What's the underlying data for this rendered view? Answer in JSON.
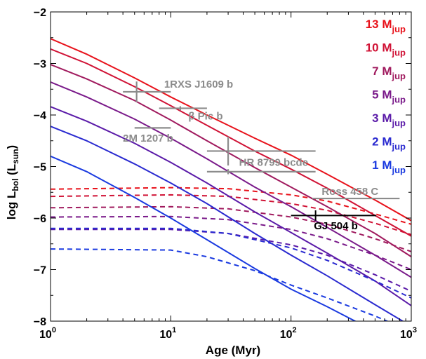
{
  "chart_data": {
    "type": "line",
    "xlabel": "Age (Myr)",
    "ylabel_main": "log L",
    "ylabel_sub1": "bol",
    "ylabel_open": " (L",
    "ylabel_sub2": "sun",
    "ylabel_close": ")",
    "xscale": "log",
    "xlim": [
      1,
      1000
    ],
    "ylim": [
      -8,
      -2
    ],
    "x_ticks": [
      {
        "value": 1,
        "base": "10",
        "exp": "0"
      },
      {
        "value": 10,
        "base": "10",
        "exp": "1"
      },
      {
        "value": 100,
        "base": "10",
        "exp": "2"
      },
      {
        "value": 1000,
        "base": "10",
        "exp": "3"
      }
    ],
    "y_ticks": [
      {
        "value": -2,
        "label": "−2"
      },
      {
        "value": -3,
        "label": "−3"
      },
      {
        "value": -4,
        "label": "−4"
      },
      {
        "value": -5,
        "label": "−5"
      },
      {
        "value": -6,
        "label": "−6"
      },
      {
        "value": -7,
        "label": "−7"
      },
      {
        "value": -8,
        "label": "−8"
      }
    ],
    "legend_position": "top-right",
    "series": [
      {
        "name": "13 M",
        "sub": "jup",
        "color": "#e8121b",
        "hot": [
          [
            1,
            -2.52
          ],
          [
            2,
            -2.82
          ],
          [
            5,
            -3.28
          ],
          [
            10,
            -3.65
          ],
          [
            20,
            -4.0
          ],
          [
            50,
            -4.45
          ],
          [
            100,
            -4.78
          ],
          [
            200,
            -5.15
          ],
          [
            500,
            -5.65
          ],
          [
            1000,
            -6.05
          ]
        ],
        "cold": [
          [
            1,
            -5.44
          ],
          [
            10,
            -5.41
          ],
          [
            30,
            -5.43
          ],
          [
            100,
            -5.55
          ],
          [
            200,
            -5.67
          ],
          [
            500,
            -5.92
          ],
          [
            1000,
            -6.12
          ]
        ]
      },
      {
        "name": "10 M",
        "sub": "jup",
        "color": "#d01235",
        "hot": [
          [
            1,
            -2.72
          ],
          [
            2,
            -3.0
          ],
          [
            5,
            -3.45
          ],
          [
            10,
            -3.82
          ],
          [
            20,
            -4.2
          ],
          [
            50,
            -4.7
          ],
          [
            100,
            -5.05
          ],
          [
            200,
            -5.42
          ],
          [
            500,
            -5.95
          ],
          [
            1000,
            -6.35
          ]
        ],
        "cold": [
          [
            1,
            -5.58
          ],
          [
            10,
            -5.55
          ],
          [
            30,
            -5.58
          ],
          [
            100,
            -5.72
          ],
          [
            200,
            -5.85
          ],
          [
            500,
            -6.1
          ],
          [
            1000,
            -6.32
          ]
        ]
      },
      {
        "name": "7 M",
        "sub": "jup",
        "color": "#a01a5e",
        "hot": [
          [
            1,
            -3.02
          ],
          [
            2,
            -3.3
          ],
          [
            5,
            -3.72
          ],
          [
            10,
            -4.1
          ],
          [
            20,
            -4.5
          ],
          [
            50,
            -5.02
          ],
          [
            100,
            -5.4
          ],
          [
            200,
            -5.78
          ],
          [
            500,
            -6.3
          ],
          [
            1000,
            -6.75
          ]
        ],
        "cold": [
          [
            1,
            -5.8
          ],
          [
            10,
            -5.78
          ],
          [
            30,
            -5.82
          ],
          [
            100,
            -5.98
          ],
          [
            200,
            -6.12
          ],
          [
            500,
            -6.4
          ],
          [
            1000,
            -6.65
          ]
        ]
      },
      {
        "name": "5 M",
        "sub": "jup",
        "color": "#7a1a8a",
        "hot": [
          [
            1,
            -3.36
          ],
          [
            2,
            -3.65
          ],
          [
            5,
            -4.08
          ],
          [
            10,
            -4.45
          ],
          [
            20,
            -4.85
          ],
          [
            50,
            -5.4
          ],
          [
            100,
            -5.78
          ],
          [
            200,
            -6.18
          ],
          [
            500,
            -6.72
          ],
          [
            1000,
            -7.15
          ]
        ],
        "cold": [
          [
            1,
            -5.98
          ],
          [
            10,
            -5.97
          ],
          [
            30,
            -6.03
          ],
          [
            100,
            -6.22
          ],
          [
            200,
            -6.4
          ],
          [
            500,
            -6.72
          ],
          [
            1000,
            -7.0
          ]
        ]
      },
      {
        "name": "3 M",
        "sub": "jup",
        "color": "#5a1aa8",
        "hot": [
          [
            1,
            -3.84
          ],
          [
            2,
            -4.12
          ],
          [
            5,
            -4.55
          ],
          [
            10,
            -4.92
          ],
          [
            20,
            -5.32
          ],
          [
            50,
            -5.88
          ],
          [
            100,
            -6.28
          ],
          [
            200,
            -6.68
          ],
          [
            500,
            -7.22
          ],
          [
            1000,
            -7.7
          ]
        ],
        "cold": [
          [
            1,
            -6.22
          ],
          [
            10,
            -6.22
          ],
          [
            30,
            -6.3
          ],
          [
            100,
            -6.52
          ],
          [
            200,
            -6.72
          ],
          [
            500,
            -7.1
          ],
          [
            1000,
            -7.42
          ]
        ]
      },
      {
        "name": "2 M",
        "sub": "jup",
        "color": "#2a2ad0",
        "hot": [
          [
            1,
            -4.22
          ],
          [
            2,
            -4.5
          ],
          [
            5,
            -4.95
          ],
          [
            10,
            -5.32
          ],
          [
            20,
            -5.72
          ],
          [
            50,
            -6.3
          ],
          [
            100,
            -6.72
          ],
          [
            200,
            -7.12
          ],
          [
            500,
            -7.68
          ],
          [
            1000,
            -8.1
          ]
        ],
        "cold": [
          [
            1,
            -6.2
          ],
          [
            10,
            -6.2
          ],
          [
            30,
            -6.3
          ],
          [
            100,
            -6.58
          ],
          [
            200,
            -6.82
          ],
          [
            500,
            -7.22
          ],
          [
            1000,
            -7.55
          ]
        ]
      },
      {
        "name": "1 M",
        "sub": "jup",
        "color": "#1a3ae0",
        "hot": [
          [
            1,
            -4.8
          ],
          [
            2,
            -5.1
          ],
          [
            5,
            -5.6
          ],
          [
            10,
            -6.0
          ],
          [
            20,
            -6.42
          ],
          [
            50,
            -6.98
          ],
          [
            100,
            -7.38
          ],
          [
            200,
            -7.72
          ],
          [
            500,
            -8.2
          ],
          [
            1000,
            -8.55
          ]
        ],
        "cold": [
          [
            1,
            -6.6
          ],
          [
            10,
            -6.62
          ],
          [
            20,
            -6.75
          ],
          [
            50,
            -7.02
          ],
          [
            100,
            -7.3
          ],
          [
            200,
            -7.55
          ],
          [
            500,
            -7.9
          ],
          [
            1000,
            -8.2
          ]
        ]
      }
    ],
    "objects": [
      {
        "label": "1RXS J1609 b",
        "color": "#8c8c8c",
        "x": 5.2,
        "y": -3.55,
        "x_lo": 4.0,
        "x_hi": 10.0,
        "y_err": 0.2,
        "lx": 8.8,
        "ly": -3.4
      },
      {
        "label": "β Pic b",
        "color": "#8c8c8c",
        "x": 12.0,
        "y": -3.87,
        "x_lo": 8.0,
        "x_hi": 20.0,
        "y_err": 0.04,
        "lx": 14.0,
        "ly": -4.02
      },
      {
        "label": "2M 1207 b",
        "color": "#8c8c8c",
        "x": 8.0,
        "y": -4.25,
        "x_lo": 5.0,
        "x_hi": 10.0,
        "y_err": 0.0,
        "lx": 4.0,
        "ly": -4.45
      },
      {
        "label": "HR 8799 bcde",
        "color": "#8c8c8c",
        "x": 30.0,
        "y": -4.7,
        "x_lo": 20.0,
        "x_hi": 160.0,
        "y_err": 0.28,
        "lx": 37.0,
        "ly": -4.92
      },
      {
        "label": "HR 8799 bcde",
        "color": "#8c8c8c",
        "x": 30.0,
        "y": -5.1,
        "x_lo": 20.0,
        "x_hi": 160.0,
        "y_err": 0.05,
        "lx": null,
        "ly": null
      },
      {
        "label": "Ross 458 C",
        "color": "#8c8c8c",
        "x": 300.0,
        "y": -5.62,
        "x_lo": 150.0,
        "x_hi": 800.0,
        "y_err": 0.0,
        "lx": 180.0,
        "ly": -5.48
      },
      {
        "label": "GJ 504 b",
        "color": "#000000",
        "x": 160.0,
        "y": -5.95,
        "x_lo": 100.0,
        "x_hi": 510.0,
        "y_err": 0.1,
        "lx": 155.0,
        "ly": -6.15
      }
    ]
  }
}
